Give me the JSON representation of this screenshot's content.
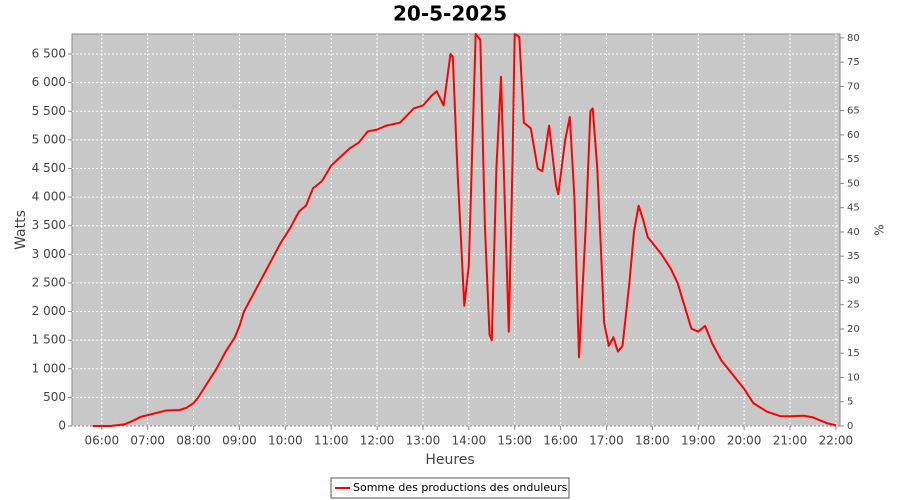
{
  "chart_data": {
    "type": "line",
    "title": "20-5-2025",
    "x_label": "Heures",
    "y_label": "Watts",
    "y2_label": "%",
    "grid": true,
    "legend": "bottom",
    "xlim": [
      5.35,
      22.09
    ],
    "xticks": [
      {
        "value": 6,
        "label": "06:00"
      },
      {
        "value": 7,
        "label": "07:00"
      },
      {
        "value": 8,
        "label": "08:00"
      },
      {
        "value": 9,
        "label": "09:00"
      },
      {
        "value": 10,
        "label": "10:00"
      },
      {
        "value": 11,
        "label": "11:00"
      },
      {
        "value": 12,
        "label": "12:00"
      },
      {
        "value": 13,
        "label": "13:00"
      },
      {
        "value": 14,
        "label": "14:00"
      },
      {
        "value": 15,
        "label": "15:00"
      },
      {
        "value": 16,
        "label": "16:00"
      },
      {
        "value": 17,
        "label": "17:00"
      },
      {
        "value": 18,
        "label": "18:00"
      },
      {
        "value": 19,
        "label": "19:00"
      },
      {
        "value": 20,
        "label": "20:00"
      },
      {
        "value": 21,
        "label": "21:00"
      },
      {
        "value": 22,
        "label": "22:00"
      }
    ],
    "ylim": [
      0,
      6850
    ],
    "yticks": [
      0,
      500,
      {
        "value": 1000,
        "label": "1 000"
      },
      {
        "value": 1500,
        "label": "1 500"
      },
      {
        "value": 2000,
        "label": "2 000"
      },
      {
        "value": 2500,
        "label": "2 500"
      },
      {
        "value": 3000,
        "label": "3 000"
      },
      {
        "value": 3500,
        "label": "3 500"
      },
      {
        "value": 4000,
        "label": "4 000"
      },
      {
        "value": 4500,
        "label": "4 500"
      },
      {
        "value": 5000,
        "label": "5 000"
      },
      {
        "value": 5500,
        "label": "5 500"
      },
      {
        "value": 6000,
        "label": "6 000"
      },
      {
        "value": 6500,
        "label": "6 500"
      }
    ],
    "y2lim": [
      0,
      80.8
    ],
    "y2ticks": [
      0,
      5,
      10,
      15,
      20,
      25,
      30,
      35,
      40,
      45,
      50,
      55,
      60,
      65,
      70,
      75,
      80
    ],
    "x": [
      5.8,
      6.2,
      6.5,
      6.7,
      6.85,
      7.0,
      7.2,
      7.4,
      7.7,
      7.85,
      8.0,
      8.1,
      8.3,
      8.5,
      8.7,
      8.9,
      9.0,
      9.1,
      9.3,
      9.5,
      9.7,
      9.9,
      10.1,
      10.3,
      10.45,
      10.6,
      10.8,
      11.0,
      11.2,
      11.4,
      11.6,
      11.8,
      12.0,
      12.2,
      12.5,
      12.8,
      13.0,
      13.2,
      13.3,
      13.45,
      13.6,
      13.65,
      13.75,
      13.9,
      14.0,
      14.15,
      14.25,
      14.35,
      14.45,
      14.5,
      14.6,
      14.7,
      14.8,
      14.87,
      14.95,
      15.0,
      15.1,
      15.2,
      15.35,
      15.5,
      15.6,
      15.75,
      15.9,
      15.95,
      16.1,
      16.2,
      16.3,
      16.4,
      16.55,
      16.65,
      16.7,
      16.8,
      16.95,
      17.05,
      17.15,
      17.25,
      17.35,
      17.5,
      17.6,
      17.7,
      17.8,
      17.9,
      18.0,
      18.2,
      18.4,
      18.55,
      18.7,
      18.85,
      19.0,
      19.15,
      19.3,
      19.5,
      19.8,
      20.0,
      20.2,
      20.5,
      20.8,
      21.0,
      21.3,
      21.5,
      21.8,
      22.0
    ],
    "series": [
      {
        "name": "Somme des productions des onduleurs",
        "color": "#ff0000",
        "values": [
          0,
          0,
          30,
          100,
          160,
          190,
          230,
          270,
          280,
          320,
          400,
          500,
          750,
          1000,
          1300,
          1550,
          1750,
          2000,
          2300,
          2600,
          2900,
          3200,
          3450,
          3750,
          3850,
          4150,
          4280,
          4550,
          4700,
          4850,
          4950,
          5150,
          5180,
          5250,
          5300,
          5550,
          5600,
          5780,
          5850,
          5600,
          6500,
          6450,
          4500,
          2100,
          2800,
          6850,
          6750,
          3500,
          1600,
          1500,
          4500,
          6100,
          3500,
          1650,
          4500,
          6850,
          6800,
          5300,
          5200,
          4500,
          4450,
          5250,
          4200,
          4050,
          5000,
          5400,
          4000,
          1200,
          3500,
          5500,
          5550,
          4500,
          1800,
          1400,
          1550,
          1300,
          1400,
          2500,
          3400,
          3850,
          3600,
          3300,
          3200,
          3000,
          2750,
          2500,
          2100,
          1700,
          1650,
          1750,
          1450,
          1150,
          850,
          650,
          400,
          250,
          170,
          170,
          180,
          150,
          50,
          10
        ]
      }
    ]
  }
}
